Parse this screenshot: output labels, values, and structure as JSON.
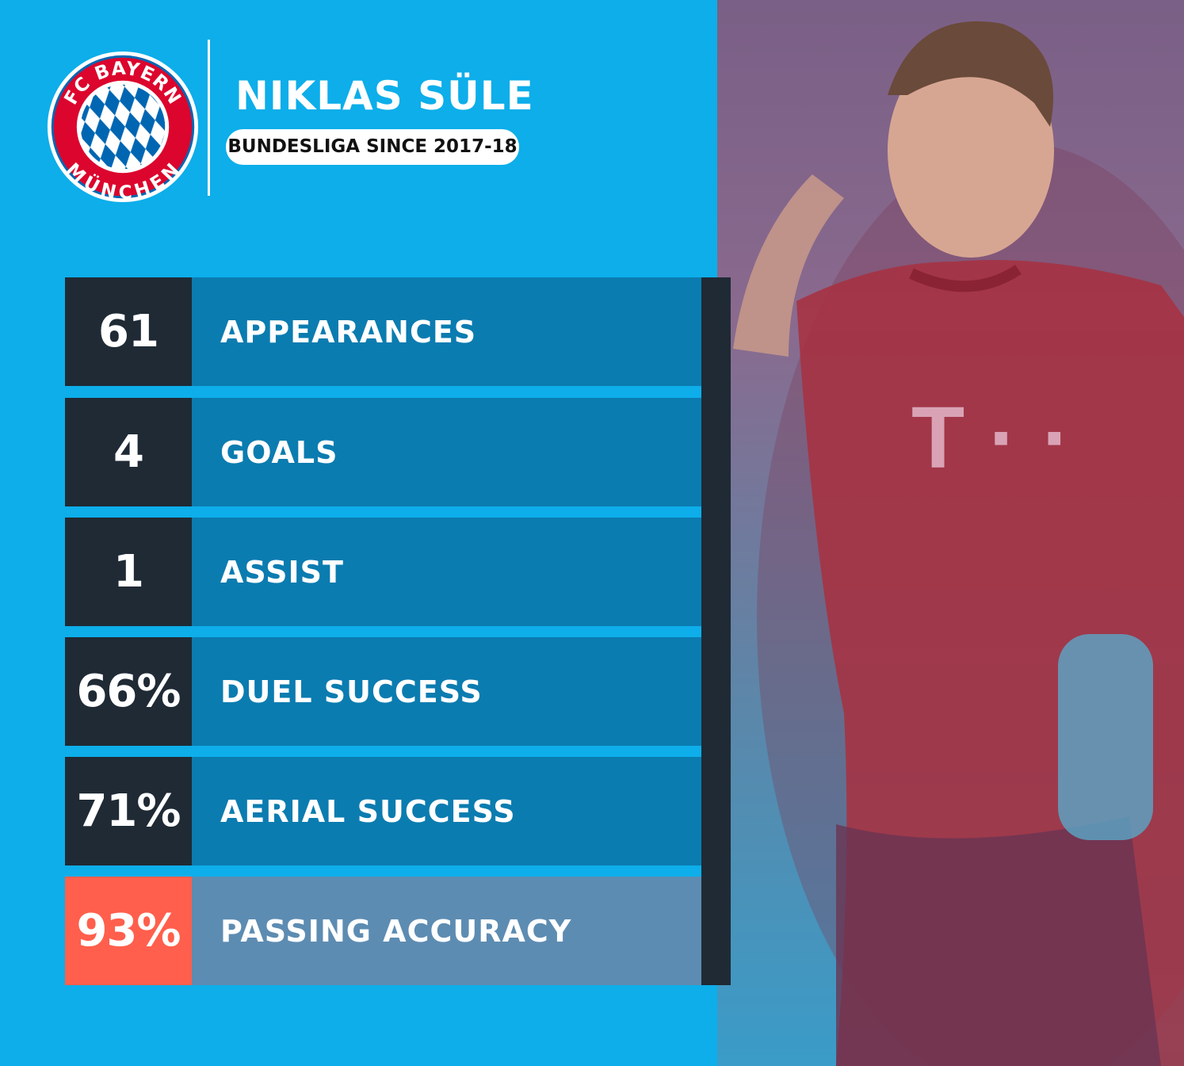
{
  "club": {
    "logo_top_text": "FC BAYERN",
    "logo_bottom_text": "MÜNCHEN",
    "colors": {
      "red": "#dc052d",
      "blue": "#0066b2"
    }
  },
  "player": {
    "name": "NIKLAS SÜLE",
    "subtitle": "BUNDESLIGA SINCE 2017-18"
  },
  "stats": [
    {
      "value": "61",
      "label": "APPEARANCES"
    },
    {
      "value": "4",
      "label": "GOALS"
    },
    {
      "value": "1",
      "label": "ASSIST"
    },
    {
      "value": "66%",
      "label": "DUEL SUCCESS"
    },
    {
      "value": "71%",
      "label": "AERIAL SUCCESS"
    },
    {
      "value": "93%",
      "label": "PASSING ACCURACY",
      "highlighted": true
    }
  ],
  "colors": {
    "background": "#0daeea",
    "dark": "#1f2a35",
    "row": "#0b7cb0",
    "highlight": "#ff5f4c",
    "highlight_row": "#5d8cb2"
  }
}
